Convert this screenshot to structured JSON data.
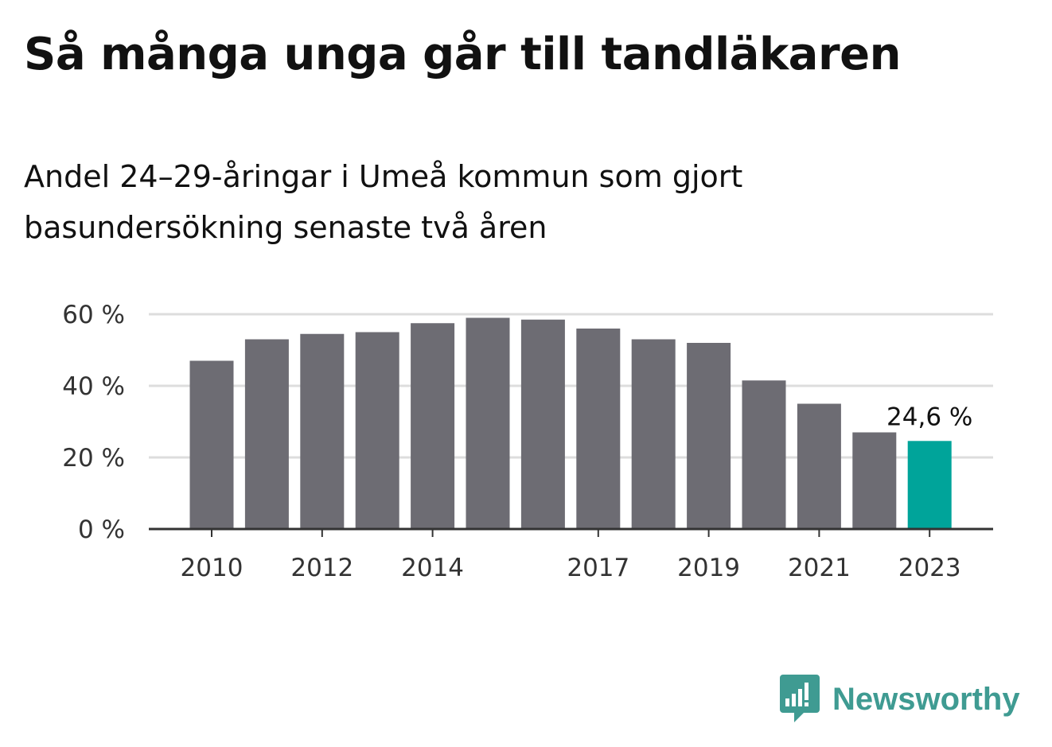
{
  "header": {
    "title": "Så många unga går till tandläkaren",
    "subtitle": "Andel 24–29-åringar i Umeå kommun som gjort basundersökning senaste två åren"
  },
  "brand": {
    "name": "Newsworthy",
    "color": "#3f9b92",
    "icon": "newsworthy-logo-icon"
  },
  "colors": {
    "bar": "#6d6c73",
    "highlight": "#00a49a",
    "grid": "#dddddd",
    "axis": "#333333"
  },
  "chart_data": {
    "type": "bar",
    "categories": [
      "2010",
      "2011",
      "2012",
      "2013",
      "2014",
      "2015",
      "2016",
      "2017",
      "2018",
      "2019",
      "2020",
      "2021",
      "2022",
      "2023"
    ],
    "values": [
      47,
      53,
      54.5,
      55,
      57.5,
      59,
      58.5,
      56,
      53,
      52,
      41.5,
      35,
      27,
      24.6
    ],
    "highlight_index": 13,
    "data_labels": [
      {
        "index": 13,
        "text": "24,6 %"
      }
    ],
    "x_tick_labels": [
      {
        "index": 0,
        "text": "2010"
      },
      {
        "index": 2,
        "text": "2012"
      },
      {
        "index": 4,
        "text": "2014"
      },
      {
        "index": 7,
        "text": "2017"
      },
      {
        "index": 9,
        "text": "2019"
      },
      {
        "index": 11,
        "text": "2021"
      },
      {
        "index": 13,
        "text": "2023"
      }
    ],
    "y_ticks": [
      {
        "value": 0,
        "text": "0 %"
      },
      {
        "value": 20,
        "text": "20 %"
      },
      {
        "value": 40,
        "text": "40 %"
      },
      {
        "value": 60,
        "text": "60 %"
      }
    ],
    "ylim": [
      0,
      60
    ],
    "grid": true
  }
}
